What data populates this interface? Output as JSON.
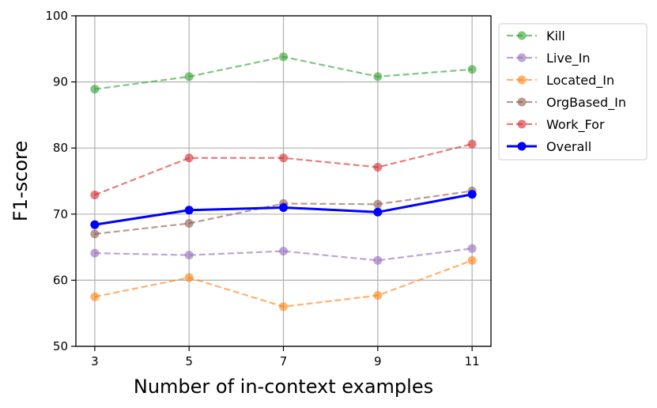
{
  "chart_data": {
    "type": "line",
    "xlabel": "Number of in-context examples",
    "ylabel": "F1-score",
    "x": [
      3,
      5,
      7,
      9,
      11
    ],
    "xlim": [
      2.6,
      11.4
    ],
    "ylim": [
      50,
      100
    ],
    "xticks": [
      "3",
      "5",
      "7",
      "9",
      "11"
    ],
    "yticks": [
      "50",
      "60",
      "70",
      "80",
      "90",
      "100"
    ],
    "grid": true,
    "legend_position": "outside right, top",
    "series": [
      {
        "name": "Kill",
        "values": [
          88.9,
          90.8,
          93.8,
          90.8,
          91.9
        ],
        "color": "#2ca02c",
        "style": "dashed"
      },
      {
        "name": "Live_In",
        "values": [
          64.1,
          63.8,
          64.4,
          63.0,
          64.8
        ],
        "color": "#9467bd",
        "style": "dashed"
      },
      {
        "name": "Located_In",
        "values": [
          57.5,
          60.4,
          56.0,
          57.7,
          63.0
        ],
        "color": "#ff7f0e",
        "style": "dashed"
      },
      {
        "name": "OrgBased_In",
        "values": [
          67.0,
          68.6,
          71.6,
          71.5,
          73.5
        ],
        "color": "#8c564b",
        "style": "dashed"
      },
      {
        "name": "Work_For",
        "values": [
          72.9,
          78.5,
          78.5,
          77.1,
          80.6
        ],
        "color": "#d62728",
        "style": "dashed"
      },
      {
        "name": "Overall",
        "values": [
          68.4,
          70.6,
          71.0,
          70.3,
          73.0
        ],
        "color": "#0000ff",
        "style": "solid"
      }
    ]
  }
}
